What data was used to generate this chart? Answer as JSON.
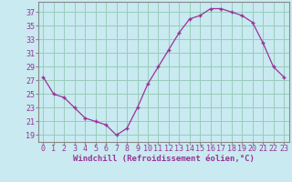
{
  "x": [
    0,
    1,
    2,
    3,
    4,
    5,
    6,
    7,
    8,
    9,
    10,
    11,
    12,
    13,
    14,
    15,
    16,
    17,
    18,
    19,
    20,
    21,
    22,
    23
  ],
  "y": [
    27.5,
    25.0,
    24.5,
    23.0,
    21.5,
    21.0,
    20.5,
    19.0,
    20.0,
    23.0,
    26.5,
    29.0,
    31.5,
    34.0,
    36.0,
    36.5,
    37.5,
    37.5,
    37.0,
    36.5,
    35.5,
    32.5,
    29.0,
    27.5
  ],
  "line_color": "#993399",
  "marker": "+",
  "bg_color": "#c8eaf0",
  "grid_color": "#99ccbb",
  "xlabel": "Windchill (Refroidissement éolien,°C)",
  "ylabel_ticks": [
    19,
    21,
    23,
    25,
    27,
    29,
    31,
    33,
    35,
    37
  ],
  "xlim": [
    -0.5,
    23.5
  ],
  "ylim": [
    18.0,
    38.5
  ],
  "xlabel_fontsize": 6.5,
  "tick_fontsize": 6.0,
  "spine_color": "#888888"
}
